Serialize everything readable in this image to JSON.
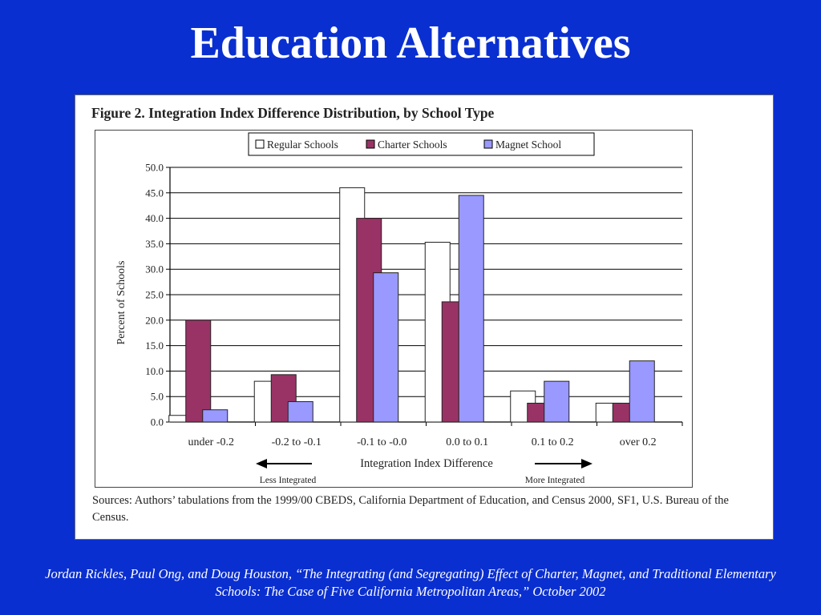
{
  "slide": {
    "title": "Education Alternatives",
    "citation": "Jordan Rickles, Paul Ong, and Doug Houston, “The Integrating (and Segregating) Effect of Charter, Magnet, and Traditional Elementary Schools: The Case of Five California Metropolitan Areas,” October 2002"
  },
  "figure": {
    "title": "Figure 2. Integration Index Difference Distribution, by School Type",
    "sources": "Sources: Authors’ tabulations from the 1999/00 CBEDS, California Department of Education, and Census 2000, SF1, U.S. Bureau of the Census."
  },
  "chart_data": {
    "type": "bar",
    "title": "Figure 2. Integration Index Difference Distribution, by School Type",
    "xlabel": "Integration Index Difference",
    "ylabel": "Percent of Schools",
    "categories": [
      "under -0.2",
      "-0.2 to -0.1",
      "-0.1 to -0.0",
      "0.0 to 0.1",
      "0.1 to 0.2",
      "over 0.2"
    ],
    "series": [
      {
        "name": "Regular Schools",
        "values": [
          1.3,
          8.0,
          46.0,
          35.3,
          6.1,
          3.7
        ],
        "color": "#ffffff"
      },
      {
        "name": "Charter Schools",
        "values": [
          20.0,
          9.3,
          40.0,
          23.6,
          3.7,
          3.7
        ],
        "color": "#993366"
      },
      {
        "name": "Magnet School",
        "values": [
          2.4,
          4.0,
          29.3,
          44.5,
          8.0,
          12.0
        ],
        "color": "#9999ff"
      }
    ],
    "ylim": [
      0,
      50
    ],
    "yticks": [
      "0.0",
      "5.0",
      "10.0",
      "15.0",
      "20.0",
      "25.0",
      "30.0",
      "35.0",
      "40.0",
      "45.0",
      "50.0"
    ],
    "grid": true,
    "legend": "top-center",
    "annotations": {
      "left_arrow": "Less Integrated",
      "right_arrow": "More Integrated"
    }
  }
}
